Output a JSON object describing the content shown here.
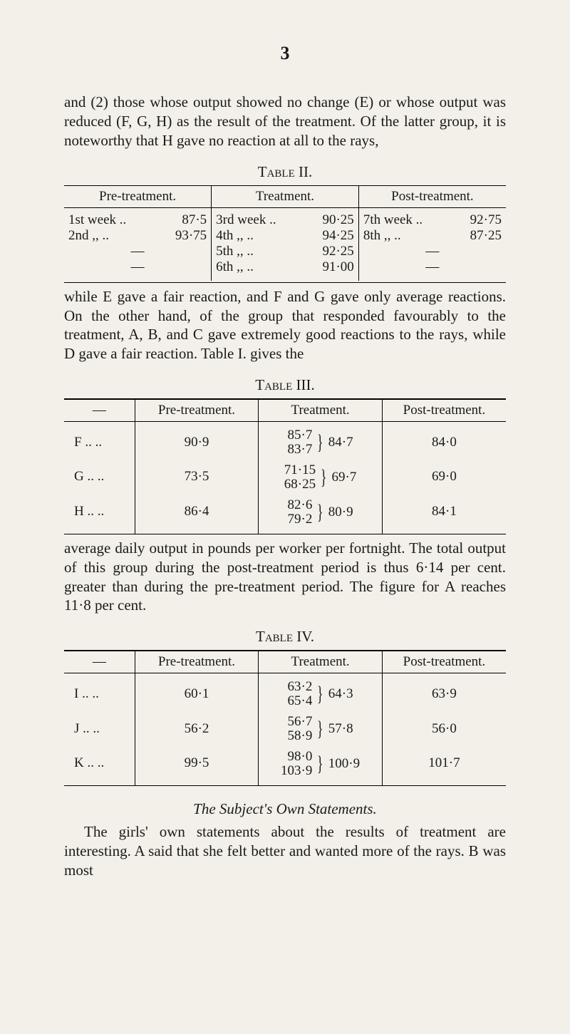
{
  "page_number": "3",
  "para1": "and (2) those whose output showed no change (E) or whose output was reduced (F, G, H) as the result of the treatment. Of the latter group, it is note­worthy that H gave no reaction at all to the rays,",
  "table2": {
    "caption": "Table II.",
    "headers": [
      "Pre-treatment.",
      "Treatment.",
      "Post-treatment."
    ],
    "col1": [
      {
        "label": "1st week ..",
        "value": "87·5"
      },
      {
        "label": "2nd   ,,   ..",
        "value": "93·75"
      },
      {
        "label": "—",
        "value": ""
      },
      {
        "label": "—",
        "value": ""
      }
    ],
    "col2": [
      {
        "label": "3rd week ..",
        "value": "90·25"
      },
      {
        "label": "4th    ,,   ..",
        "value": "94·25"
      },
      {
        "label": "5th    ,,   ..",
        "value": "92·25"
      },
      {
        "label": "6th    ,,   ..",
        "value": "91·00"
      }
    ],
    "col3": [
      {
        "label": "7th week ..",
        "value": "92·75"
      },
      {
        "label": "8th    ,,   ..",
        "value": "87·25"
      },
      {
        "label": "—",
        "value": ""
      },
      {
        "label": "—",
        "value": ""
      }
    ]
  },
  "para2": "while E gave a fair reaction, and F and G gave only average reactions. On the other hand, of the group that responded favourably to the treatment, A, B, and C gave extremely good reactions to the rays, while D gave a fair reaction. Table I. gives the",
  "table3": {
    "caption": "Table III.",
    "headers": [
      "—",
      "Pre-treatment.",
      "Treatment.",
      "Post-treatment."
    ],
    "rows": [
      {
        "label": "F  ..  ..",
        "pre": "90·9",
        "t1": "85·7",
        "t2": "83·7",
        "avg": "84·7",
        "post": "84·0"
      },
      {
        "label": "G  ..  ..",
        "pre": "73·5",
        "t1": "71·15",
        "t2": "68·25",
        "avg": "69·7",
        "post": "69·0"
      },
      {
        "label": "H  ..  ..",
        "pre": "86·4",
        "t1": "82·6",
        "t2": "79·2",
        "avg": "80·9",
        "post": "84·1"
      }
    ]
  },
  "para3": "average daily output in pounds per worker per fortnight. The total output of this group during the post-treatment period is thus 6·14 per cent. greater than during the pre-treatment period. The figure for A reaches 11·8 per cent.",
  "table4": {
    "caption": "Table IV.",
    "headers": [
      "—",
      "Pre-treatment.",
      "Treatment.",
      "Post-treatment."
    ],
    "rows": [
      {
        "label": "I  ..  ..",
        "pre": "60·1",
        "t1": "63·2",
        "t2": "65·4",
        "avg": "64·3",
        "post": "63·9"
      },
      {
        "label": "J  ..  ..",
        "pre": "56·2",
        "t1": "56·7",
        "t2": "58·9",
        "avg": "57·8",
        "post": "56·0"
      },
      {
        "label": "K  ..  ..",
        "pre": "99·5",
        "t1": "98·0",
        "t2": "103·9",
        "avg": "100·9",
        "post": "101·7"
      }
    ]
  },
  "subhead": "The Subject's Own Statements.",
  "para4": "The girls' own statements about the results of treatment are interesting. A said that she felt better and wanted more of the rays. B was most"
}
